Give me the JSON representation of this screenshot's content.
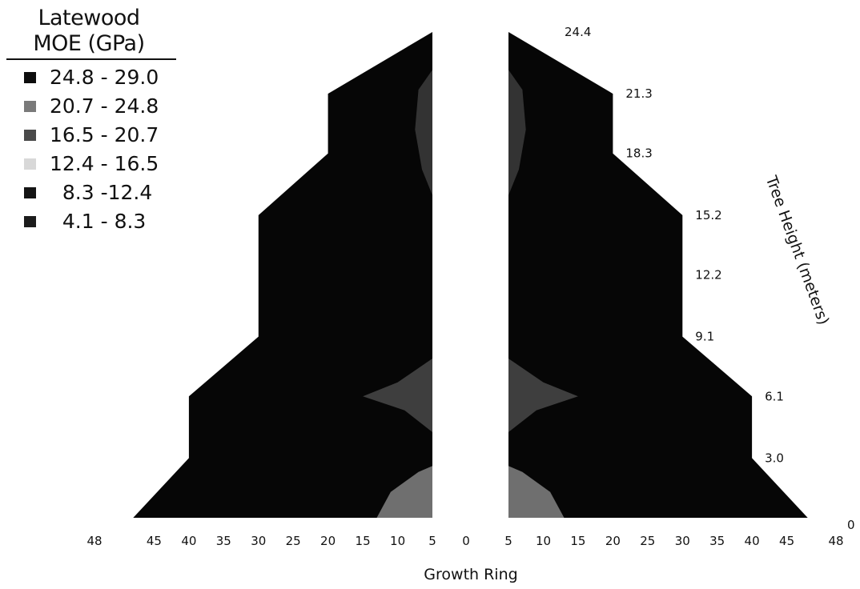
{
  "legend": {
    "title_line1": "Latewood",
    "title_line2": "MOE (GPa)",
    "entries": [
      {
        "label": "24.8 - 29.0",
        "color": "#0d0d0d"
      },
      {
        "label": "20.7 - 24.8",
        "color": "#7a7a7a"
      },
      {
        "label": "16.5 - 20.7",
        "color": "#4a4a4a"
      },
      {
        "label": "12.4 - 16.5",
        "color": "#d8d8d8"
      },
      {
        "label": "  8.3 -12.4",
        "color": "#141414"
      },
      {
        "label": "  4.1 - 8.3",
        "color": "#1c1c1c"
      }
    ]
  },
  "chart_data": {
    "type": "heatmap",
    "title": "",
    "xlabel": "Growth Ring",
    "ylabel": "Tree Height (meters)",
    "x_ticks_left": [
      "48",
      "45",
      "40",
      "35",
      "30",
      "25",
      "20",
      "15",
      "10",
      "5"
    ],
    "x_tick_center": "0",
    "x_ticks_right": [
      "5",
      "10",
      "15",
      "20",
      "25",
      "30",
      "35",
      "40",
      "45",
      "48"
    ],
    "y_ticks": [
      "0",
      "3.0",
      "6.1",
      "9.1",
      "12.2",
      "15.2",
      "18.3",
      "21.3",
      "24.4"
    ],
    "outline": [
      {
        "height": 0,
        "max_ring": 48
      },
      {
        "height": 3.0,
        "max_ring": 40
      },
      {
        "height": 6.1,
        "max_ring": 40
      },
      {
        "height": 9.1,
        "max_ring": 30
      },
      {
        "height": 12.2,
        "max_ring": 30
      },
      {
        "height": 15.2,
        "max_ring": 30
      },
      {
        "height": 18.3,
        "max_ring": 20
      },
      {
        "height": 21.3,
        "max_ring": 20
      },
      {
        "height": 24.4,
        "max_ring": 5
      }
    ],
    "zones": [
      {
        "label": "Latewood MOE 20.7 - 24.8 near pith at base",
        "color": "#6f6f6f",
        "points": [
          [
            5,
            0
          ],
          [
            13,
            0
          ],
          [
            11,
            1.3
          ],
          [
            7,
            2.3
          ],
          [
            5,
            2.6
          ]
        ]
      },
      {
        "label": "Latewood MOE 16.5 - 20.7 around 6.1 m",
        "color": "#3e3e3e",
        "points": [
          [
            5,
            4.3
          ],
          [
            9,
            5.4
          ],
          [
            15,
            6.1
          ],
          [
            10,
            6.8
          ],
          [
            5,
            8.0
          ]
        ]
      },
      {
        "label": "Latewood MOE 16.5 - 20.7 near top",
        "color": "#333333",
        "points": [
          [
            5,
            16.2
          ],
          [
            5,
            22.5
          ],
          [
            7,
            21.5
          ],
          [
            7.5,
            19.5
          ],
          [
            6.5,
            17.5
          ]
        ]
      }
    ],
    "body_color": "#060606",
    "background": "#ffffff"
  }
}
